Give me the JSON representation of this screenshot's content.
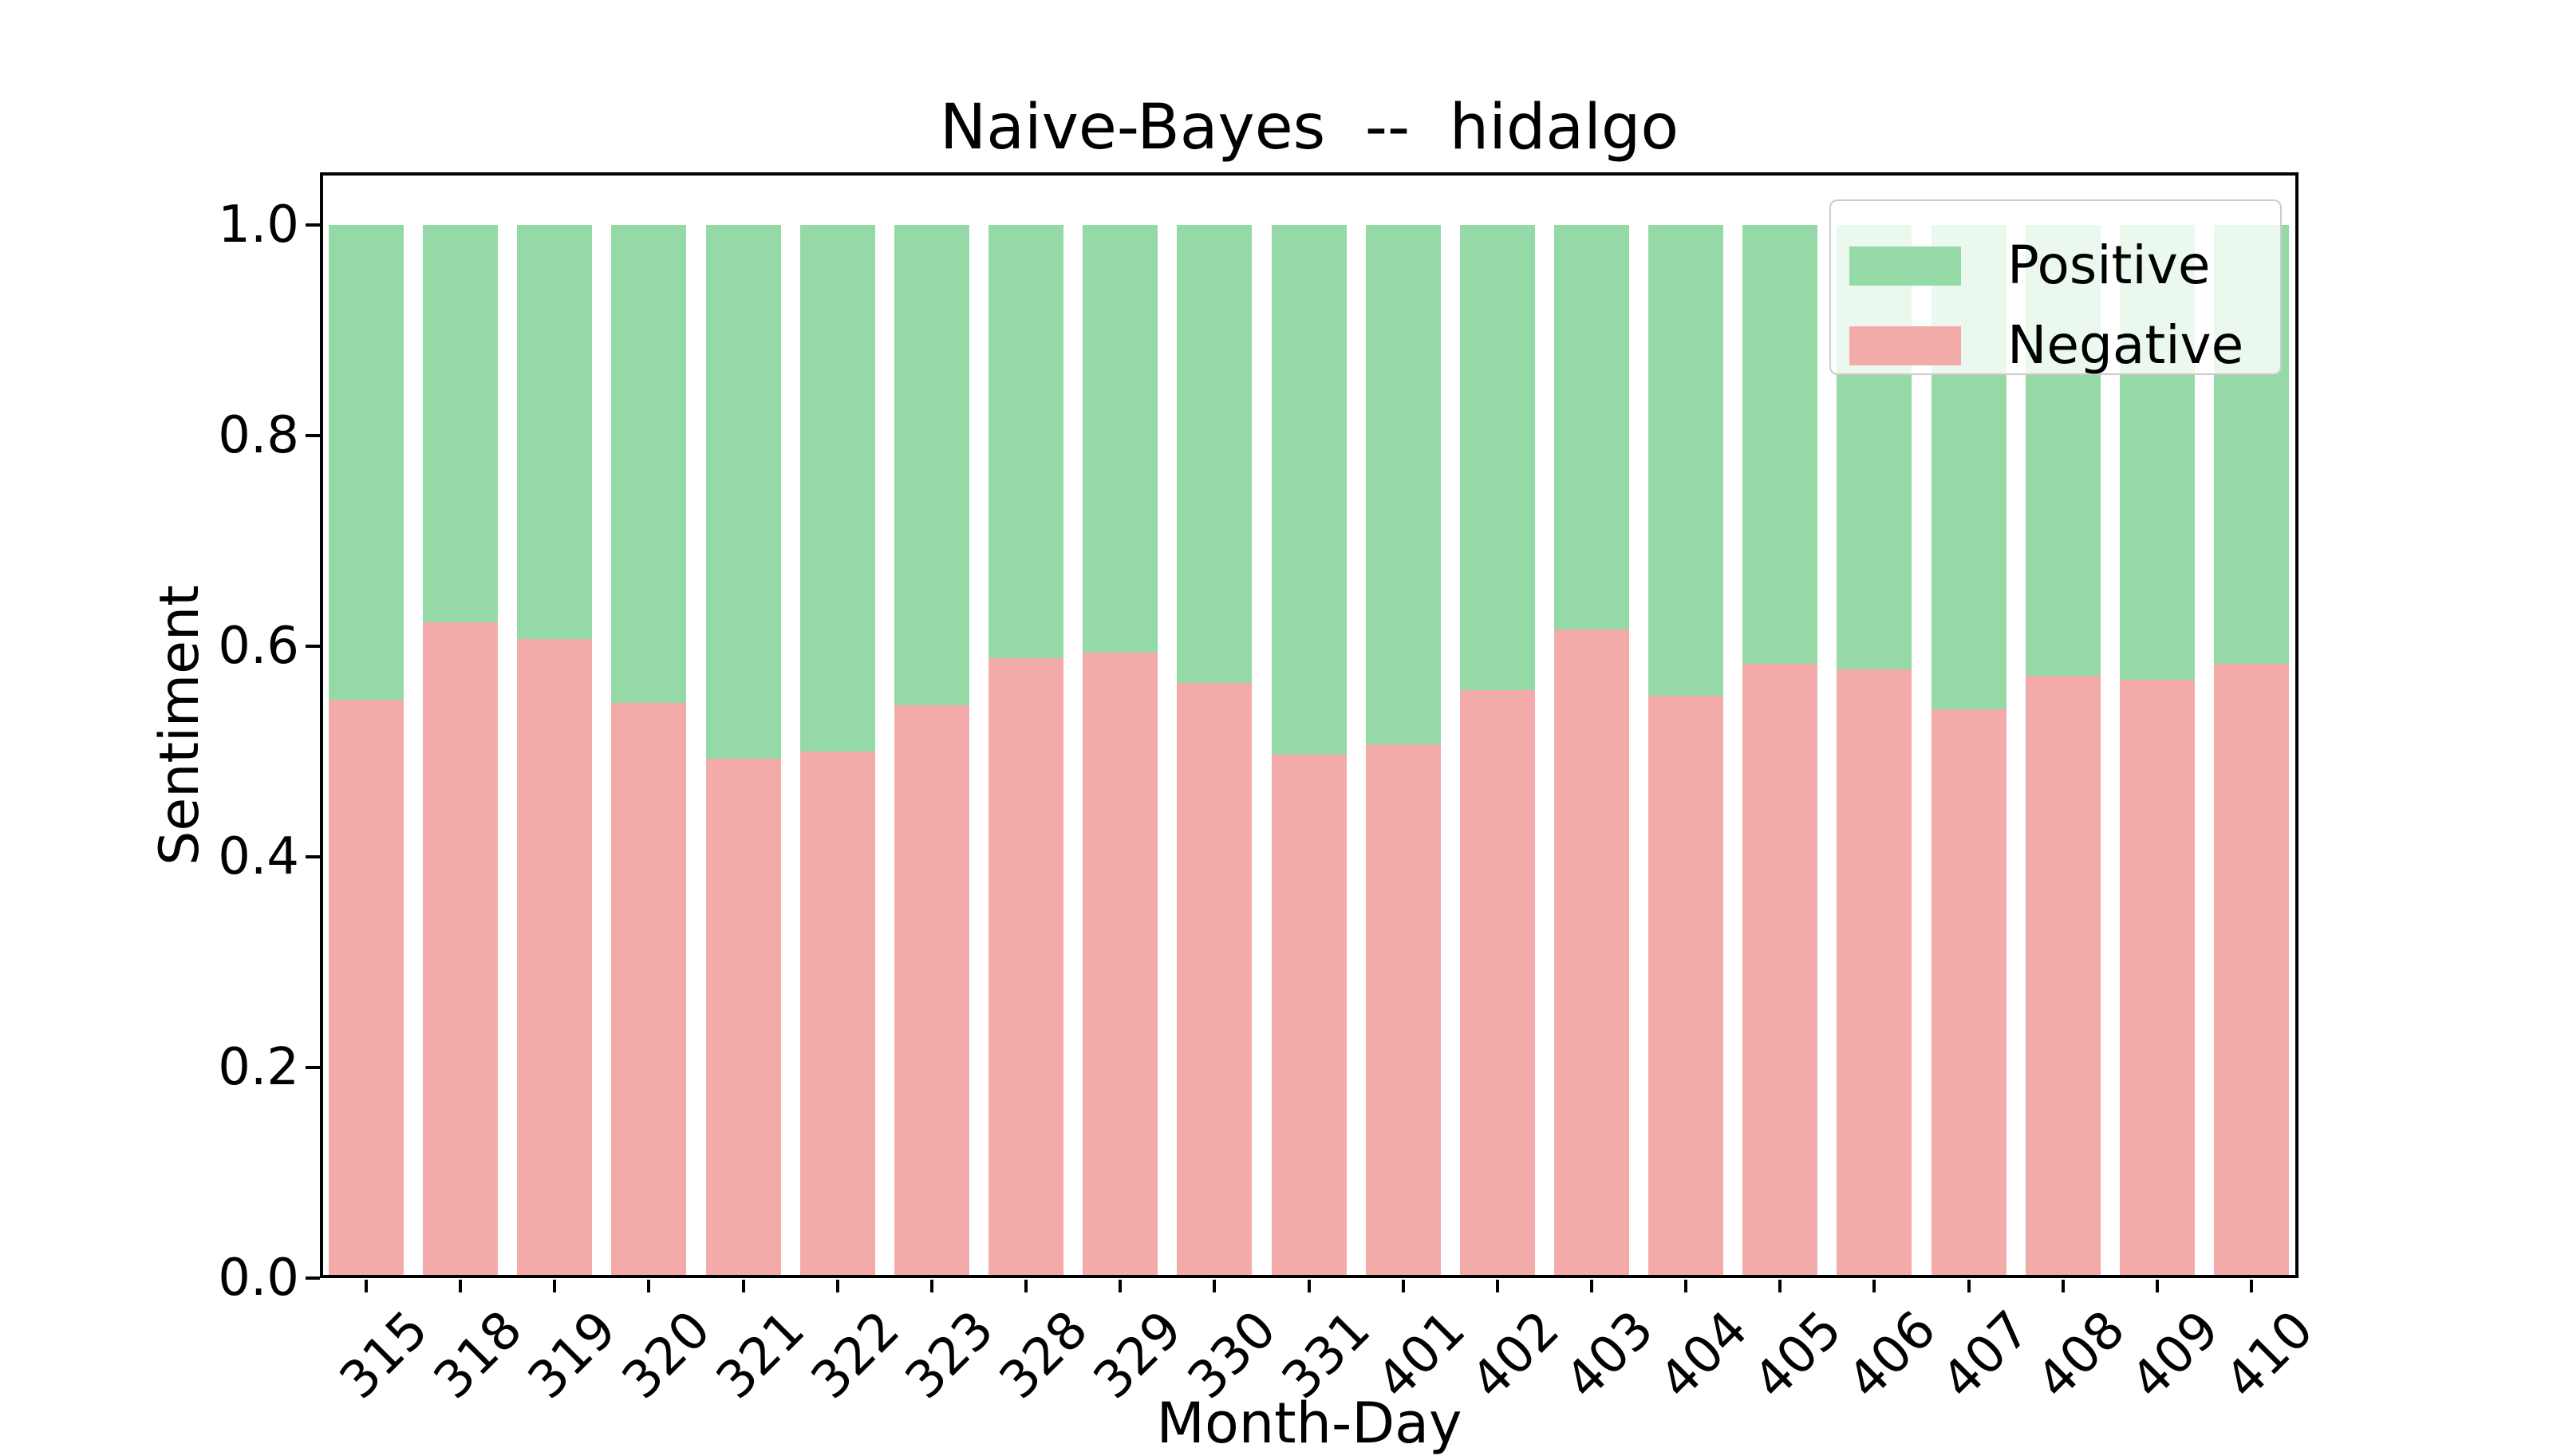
{
  "chart_data": {
    "type": "bar",
    "stacked": true,
    "title": "Naive-Bayes  --  hidalgo",
    "xlabel": "Month-Day",
    "ylabel": "Sentiment",
    "categories": [
      "315",
      "318",
      "319",
      "320",
      "321",
      "322",
      "323",
      "328",
      "329",
      "330",
      "331",
      "401",
      "402",
      "403",
      "404",
      "405",
      "406",
      "407",
      "408",
      "409",
      "410"
    ],
    "series": [
      {
        "name": "Negative",
        "color": "#f3abaa",
        "values": [
          0.549,
          0.623,
          0.607,
          0.546,
          0.493,
          0.5,
          0.544,
          0.589,
          0.594,
          0.565,
          0.497,
          0.507,
          0.558,
          0.616,
          0.553,
          0.583,
          0.578,
          0.54,
          0.572,
          0.568,
          0.583
        ]
      },
      {
        "name": "Positive",
        "color": "#95d9a7",
        "values": [
          0.451,
          0.377,
          0.393,
          0.454,
          0.507,
          0.5,
          0.456,
          0.411,
          0.406,
          0.435,
          0.503,
          0.493,
          0.442,
          0.384,
          0.447,
          0.417,
          0.422,
          0.46,
          0.428,
          0.432,
          0.417
        ]
      }
    ],
    "ylim": [
      0,
      1.05
    ],
    "yticks": [
      {
        "value": 0.0,
        "label": "0.0"
      },
      {
        "value": 0.2,
        "label": "0.2"
      },
      {
        "value": 0.4,
        "label": "0.4"
      },
      {
        "value": 0.6,
        "label": "0.6"
      },
      {
        "value": 0.8,
        "label": "0.8"
      },
      {
        "value": 1.0,
        "label": "1.0"
      }
    ],
    "grid": false,
    "legend_position": "upper right"
  },
  "legend": {
    "entries": [
      {
        "label": "Positive",
        "color": "#95d9a7"
      },
      {
        "label": "Negative",
        "color": "#f3abaa"
      }
    ]
  }
}
